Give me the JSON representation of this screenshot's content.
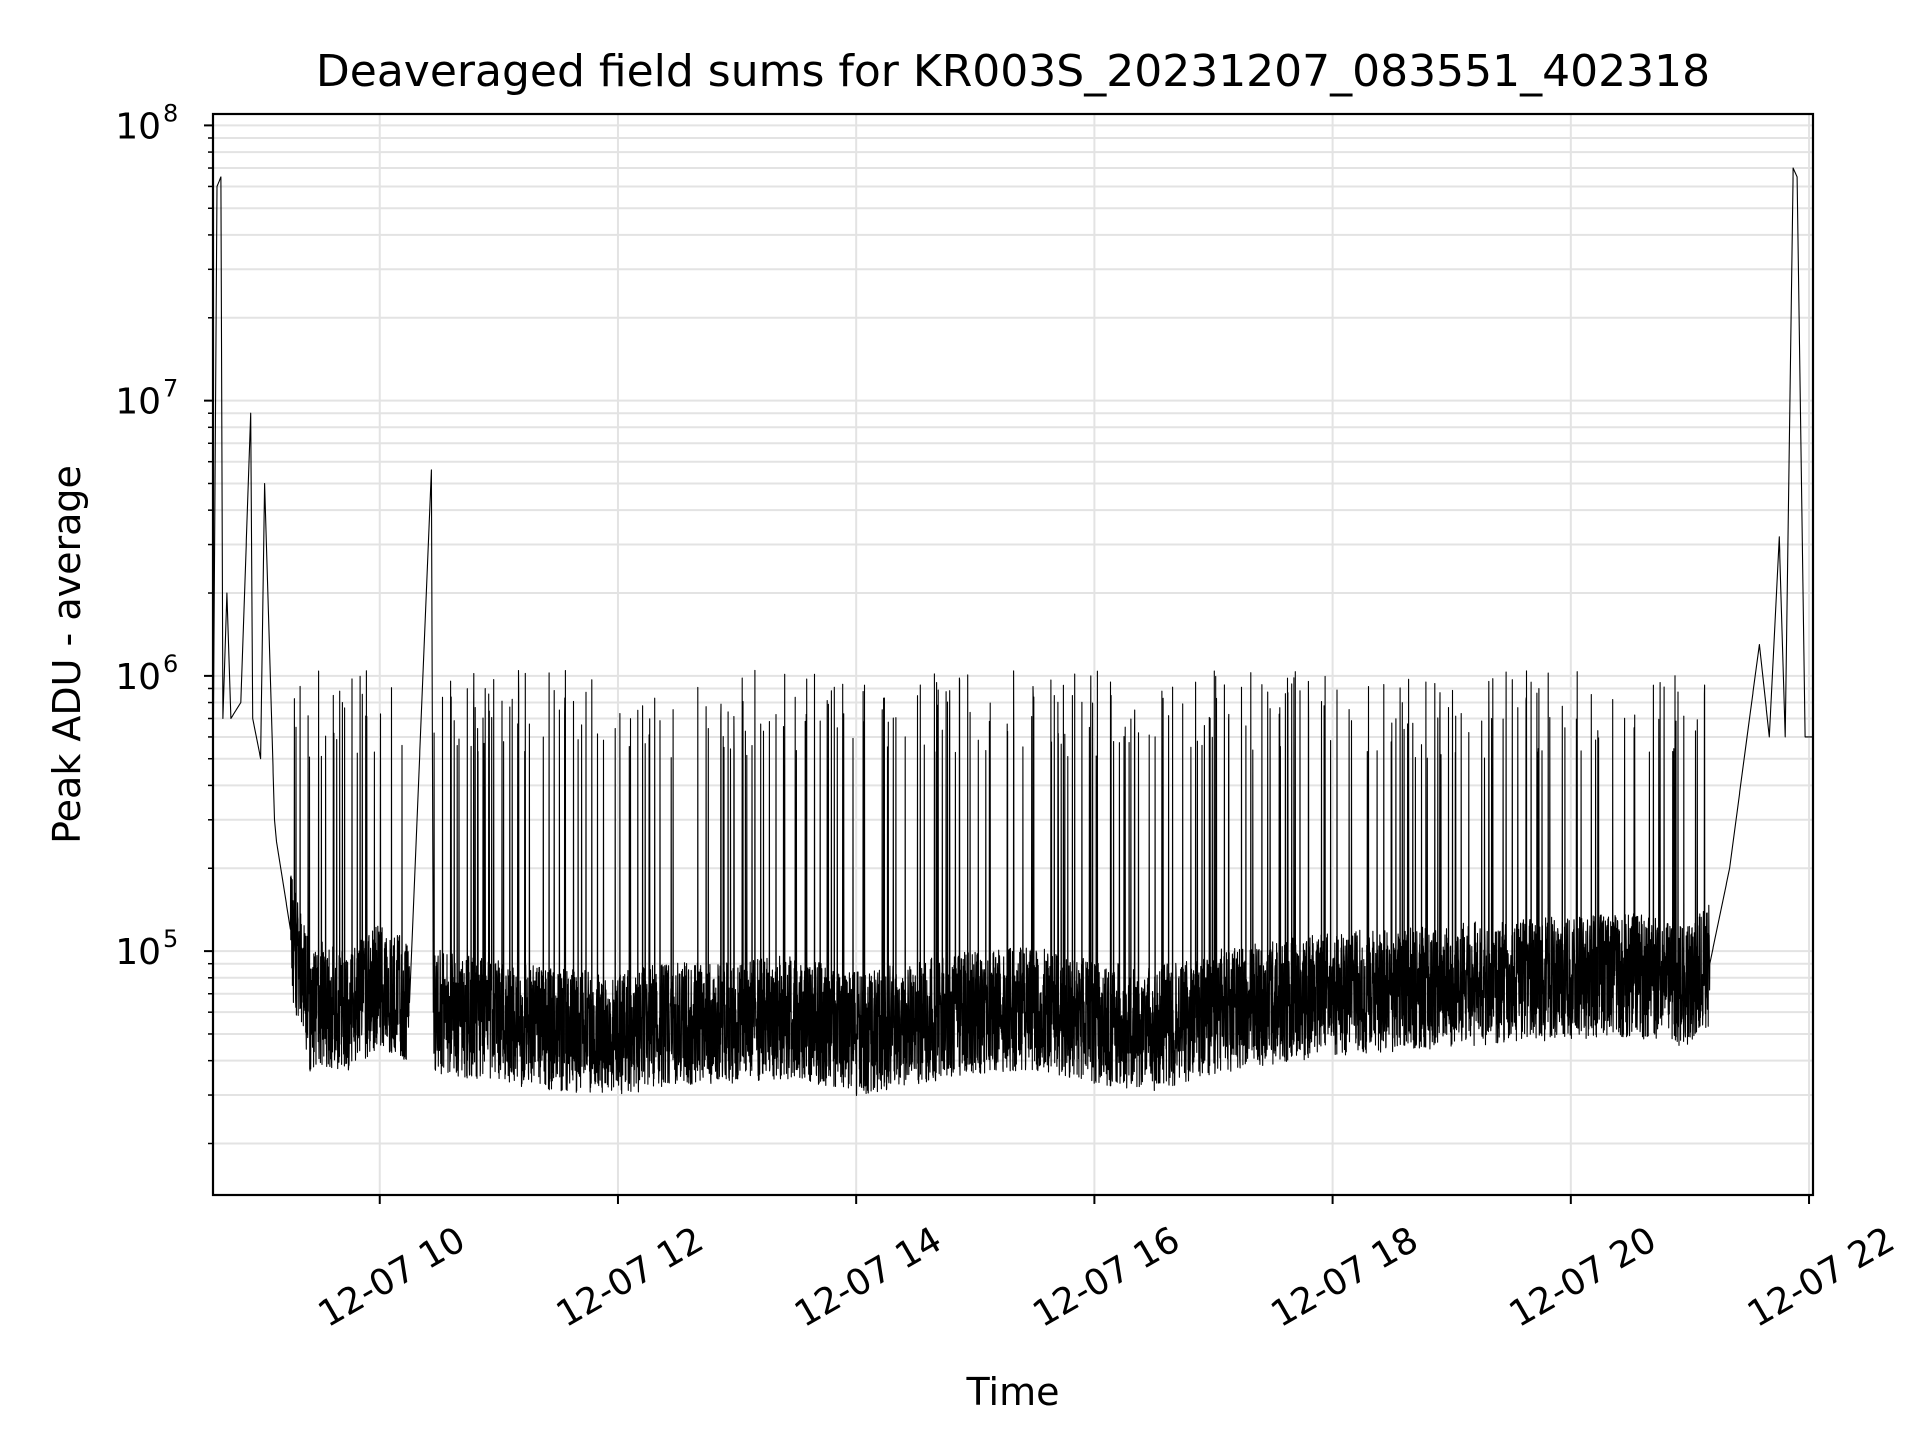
{
  "chart_data": {
    "type": "line",
    "title": "Deaveraged field sums for KR003S_20231207_083551_402318",
    "xlabel": "Time",
    "ylabel": "Peak ADU - average",
    "yscale": "log",
    "ylim": [
      13000,
      110000000
    ],
    "xlim": [
      "2023-12-07 08:36",
      "2023-12-07 22:02"
    ],
    "grid": true,
    "line_color": "#000000",
    "grid_color": "#e3e3e3",
    "x_tick_labels": [
      "12-07 10",
      "12-07 12",
      "12-07 14",
      "12-07 16",
      "12-07 18",
      "12-07 20",
      "12-07 22"
    ],
    "x_ticks": [
      "2023-12-07 10:00",
      "2023-12-07 12:00",
      "2023-12-07 14:00",
      "2023-12-07 16:00",
      "2023-12-07 18:00",
      "2023-12-07 20:00",
      "2023-12-07 22:00"
    ],
    "y_ticks": [
      {
        "value": 100000,
        "base": "10",
        "exp": "5"
      },
      {
        "value": 1000000,
        "base": "10",
        "exp": "6"
      },
      {
        "value": 10000000,
        "base": "10",
        "exp": "7"
      },
      {
        "value": 100000000,
        "base": "10",
        "exp": "8"
      }
    ],
    "series": [
      {
        "x": [
          "2023-12-07 08:36",
          "2023-12-07 08:38",
          "2023-12-07 08:40",
          "2023-12-07 08:41",
          "2023-12-07 08:43",
          "2023-12-07 08:45",
          "2023-12-07 08:50",
          "2023-12-07 08:55",
          "2023-12-07 08:56",
          "2023-12-07 09:00",
          "2023-12-07 09:02",
          "2023-12-07 09:07",
          "2023-12-07 09:08",
          "2023-12-07 09:15",
          "2023-12-07 09:25",
          "2023-12-07 09:30",
          "2023-12-07 09:45",
          "2023-12-07 10:00",
          "2023-12-07 10:15",
          "2023-12-07 10:26",
          "2023-12-07 10:27",
          "2023-12-07 10:30",
          "2023-12-07 11:00",
          "2023-12-07 11:30",
          "2023-12-07 12:00",
          "2023-12-07 12:30",
          "2023-12-07 13:00",
          "2023-12-07 13:30",
          "2023-12-07 14:00",
          "2023-12-07 14:30",
          "2023-12-07 15:00",
          "2023-12-07 15:30",
          "2023-12-07 16:00",
          "2023-12-07 16:30",
          "2023-12-07 17:00",
          "2023-12-07 17:30",
          "2023-12-07 18:00",
          "2023-12-07 18:30",
          "2023-12-07 19:00",
          "2023-12-07 19:30",
          "2023-12-07 20:00",
          "2023-12-07 20:30",
          "2023-12-07 21:00",
          "2023-12-07 21:10",
          "2023-12-07 21:20",
          "2023-12-07 21:30",
          "2023-12-07 21:35",
          "2023-12-07 21:40",
          "2023-12-07 21:45",
          "2023-12-07 21:48",
          "2023-12-07 21:52",
          "2023-12-07 21:54",
          "2023-12-07 21:58",
          "2023-12-07 22:02"
        ],
        "y": [
          400000,
          60000000,
          65000000,
          700000,
          2000000,
          700000,
          800000,
          9000000,
          700000,
          500000,
          5000000,
          300000,
          250000,
          120000,
          60000,
          65000,
          60000,
          75000,
          65000,
          5600000,
          60000,
          60000,
          55000,
          52000,
          50000,
          55000,
          55000,
          58000,
          50000,
          55000,
          60000,
          62000,
          55000,
          52000,
          60000,
          65000,
          70000,
          72000,
          75000,
          78000,
          80000,
          82000,
          75000,
          90000,
          200000,
          700000,
          1300000,
          600000,
          3200000,
          600000,
          70000000,
          65000000,
          600000,
          600000
        ]
      }
    ]
  }
}
